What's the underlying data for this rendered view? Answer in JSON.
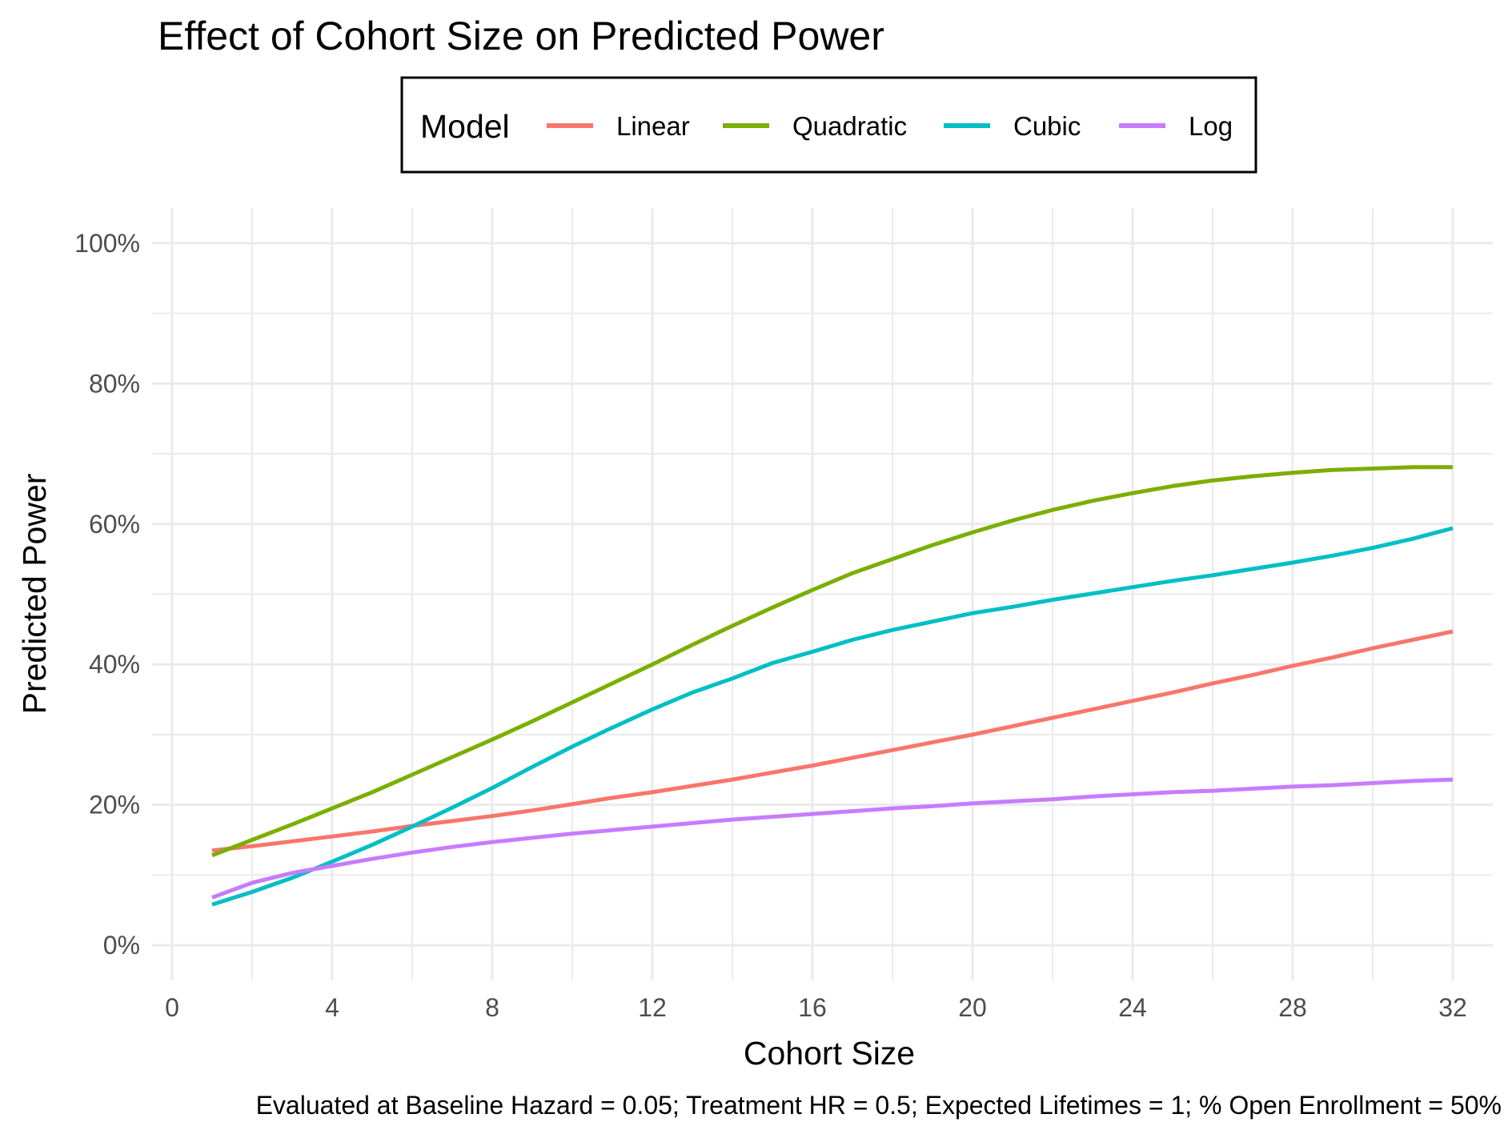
{
  "chart_data": {
    "type": "line",
    "title": "Effect of Cohort Size on Predicted Power",
    "xlabel": "Cohort Size",
    "ylabel": "Predicted Power",
    "caption": "Evaluated at Baseline Hazard = 0.05; Treatment HR = 0.5; Expected Lifetimes = 1; % Open Enrollment = 50%",
    "legend_title": "Model",
    "legend_position": "top",
    "grid": true,
    "xlim": [
      -0.5,
      33
    ],
    "ylim": [
      -5,
      105
    ],
    "x_ticks": [
      0,
      4,
      8,
      12,
      16,
      20,
      24,
      28,
      32
    ],
    "x_tick_labels": [
      "0",
      "4",
      "8",
      "12",
      "16",
      "20",
      "24",
      "28",
      "32"
    ],
    "y_ticks": [
      0,
      20,
      40,
      60,
      80,
      100
    ],
    "y_tick_labels": [
      "0%",
      "20%",
      "40%",
      "60%",
      "80%",
      "100%"
    ],
    "x": [
      1,
      2,
      3,
      4,
      5,
      6,
      7,
      8,
      9,
      10,
      11,
      12,
      13,
      14,
      15,
      16,
      17,
      18,
      19,
      20,
      21,
      22,
      23,
      24,
      25,
      26,
      27,
      28,
      29,
      30,
      31,
      32
    ],
    "series": [
      {
        "name": "Linear",
        "color": "#F8766D",
        "values": [
          13.5,
          14.1,
          14.8,
          15.5,
          16.2,
          17.0,
          17.7,
          18.4,
          19.2,
          20.1,
          21.0,
          21.8,
          22.7,
          23.6,
          24.6,
          25.6,
          26.7,
          27.8,
          28.9,
          30.0,
          31.2,
          32.4,
          33.6,
          34.8,
          36.0,
          37.3,
          38.5,
          39.8,
          41.0,
          42.3,
          43.5,
          44.7
        ]
      },
      {
        "name": "Quadratic",
        "color": "#7CAE00",
        "values": [
          12.8,
          15.0,
          17.2,
          19.5,
          21.8,
          24.3,
          26.8,
          29.3,
          31.9,
          34.6,
          37.3,
          40.0,
          42.8,
          45.5,
          48.1,
          50.6,
          53.0,
          55.0,
          57.0,
          58.8,
          60.5,
          62.0,
          63.3,
          64.4,
          65.4,
          66.2,
          66.8,
          67.3,
          67.7,
          67.9,
          68.1,
          68.1
        ]
      },
      {
        "name": "Cubic",
        "color": "#00BFC4",
        "values": [
          5.8,
          7.6,
          9.6,
          11.9,
          14.3,
          16.9,
          19.6,
          22.4,
          25.4,
          28.3,
          31.0,
          33.6,
          36.0,
          38.0,
          40.2,
          41.8,
          43.5,
          44.9,
          46.1,
          47.3,
          48.2,
          49.2,
          50.1,
          51.0,
          51.9,
          52.7,
          53.6,
          54.5,
          55.5,
          56.6,
          57.9,
          59.4
        ]
      },
      {
        "name": "Log",
        "color": "#C77CFF",
        "values": [
          6.8,
          8.9,
          10.3,
          11.3,
          12.3,
          13.2,
          14.0,
          14.7,
          15.3,
          15.9,
          16.4,
          16.9,
          17.4,
          17.9,
          18.3,
          18.7,
          19.1,
          19.5,
          19.8,
          20.2,
          20.5,
          20.8,
          21.2,
          21.5,
          21.8,
          22.0,
          22.3,
          22.6,
          22.8,
          23.1,
          23.4,
          23.6
        ]
      }
    ]
  }
}
